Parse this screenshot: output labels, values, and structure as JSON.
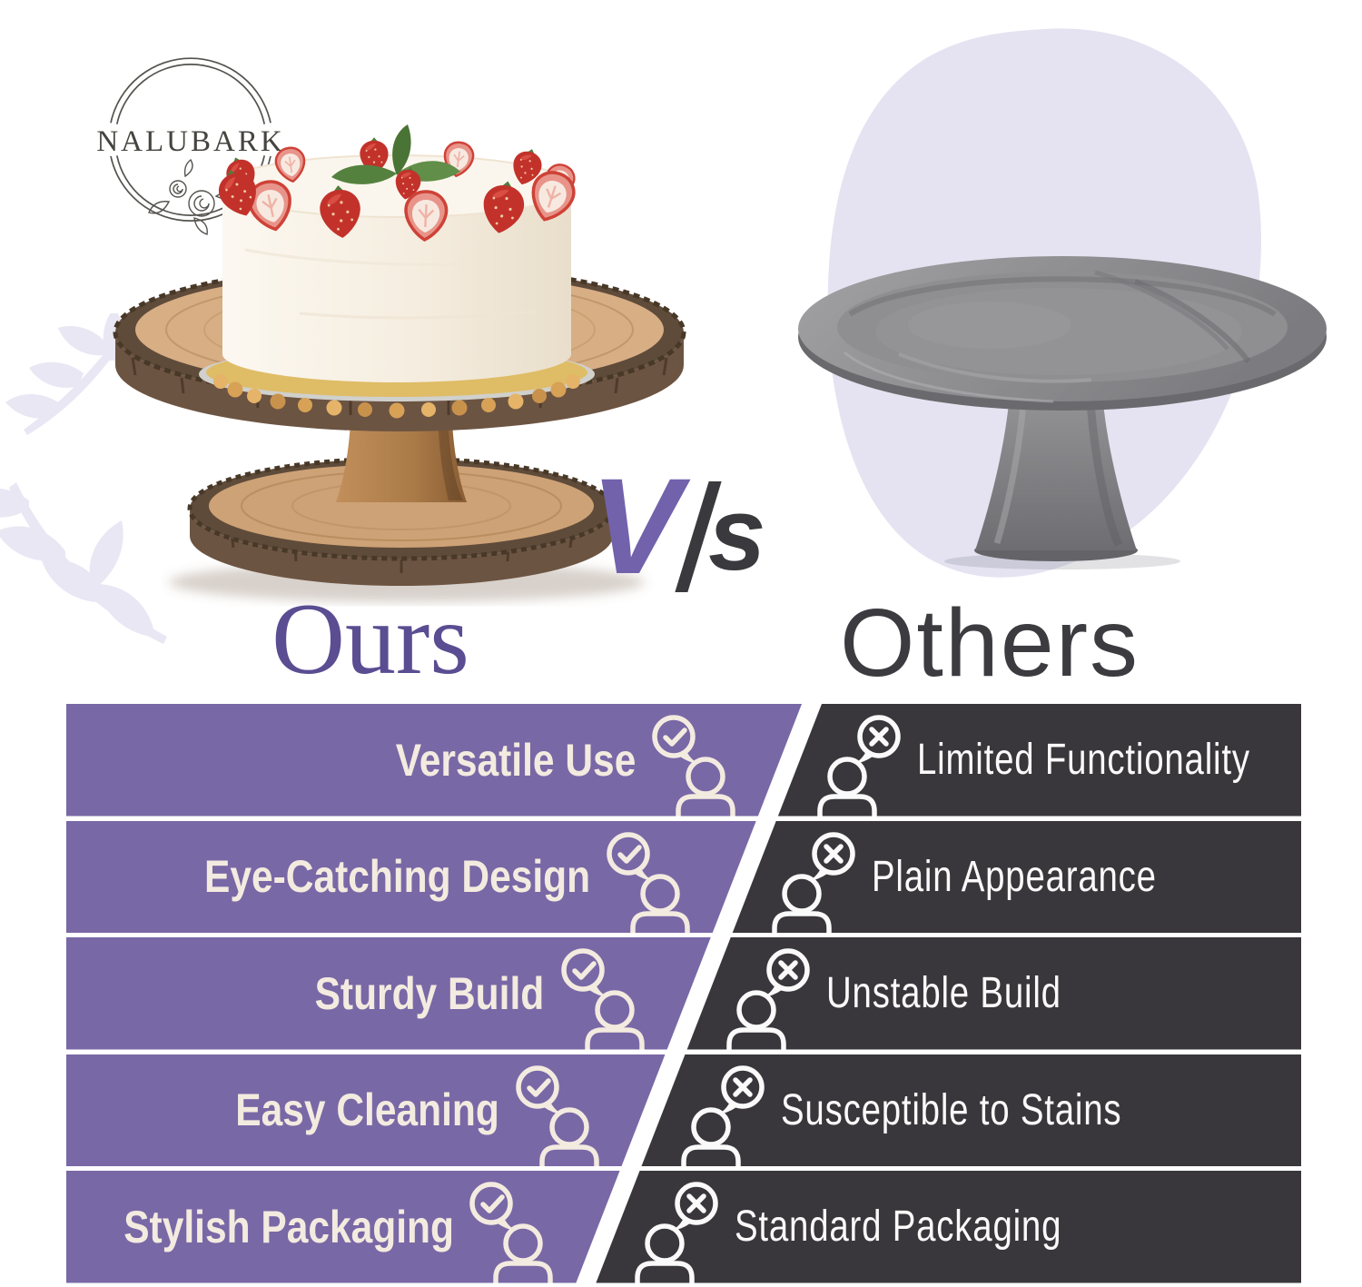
{
  "brand": {
    "name": "NALUBARK"
  },
  "products": {
    "ours_image": "wooden-log-cake-stand-with-strawberry-cheesecake",
    "others_image": "plain-gray-wooden-cake-stand"
  },
  "versus": {
    "v": "V",
    "slash": "/",
    "s": "s",
    "ours_label": "Ours",
    "others_label": "Others"
  },
  "comparison": {
    "ours_icon": "speech-bubble-check-with-person",
    "others_icon": "speech-bubble-x-with-person",
    "rows": [
      {
        "ours": "Versatile Use",
        "others": "Limited Functionality"
      },
      {
        "ours": "Eye-Catching Design",
        "others": "Plain Appearance"
      },
      {
        "ours": "Sturdy Build",
        "others": "Unstable Build"
      },
      {
        "ours": "Easy Cleaning",
        "others": "Susceptible to Stains"
      },
      {
        "ours": "Stylish Packaging",
        "others": "Standard Packaging"
      }
    ]
  },
  "colors": {
    "purple": "#7968A6",
    "dark": "#39373B",
    "cream-text": "#F3EBDF",
    "white-text": "#FAFAFA",
    "v-purple": "#7262AB",
    "ours-label": "#5A4D92",
    "others-label": "#3C3C40",
    "lavender-blob": "#E5E3F1",
    "leaf-lavender": "#E9E7F3"
  }
}
